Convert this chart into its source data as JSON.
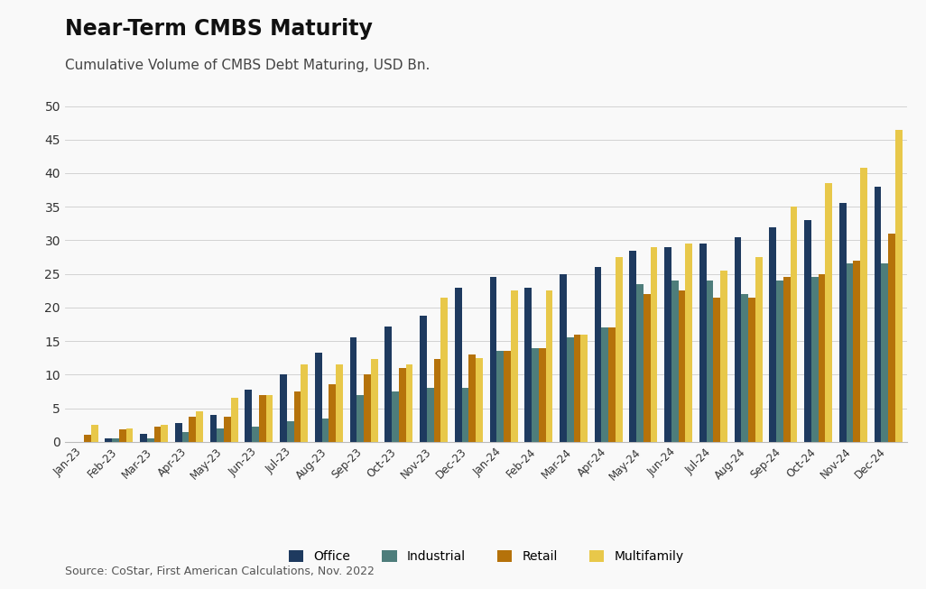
{
  "title": "Near-Term CMBS Maturity",
  "subtitle": "Cumulative Volume of CMBS Debt Maturing, USD Bn.",
  "source": "Source: CoStar, First American Calculations, Nov. 2022",
  "categories": [
    "Jan-23",
    "Feb-23",
    "Mar-23",
    "Apr-23",
    "May-23",
    "Jun-23",
    "Jul-23",
    "Aug-23",
    "Sep-23",
    "Oct-23",
    "Nov-23",
    "Dec-23",
    "Jan-24",
    "Feb-24",
    "Mar-24",
    "Apr-24",
    "May-24",
    "Jun-24",
    "Jul-24",
    "Aug-24",
    "Sep-24",
    "Oct-24",
    "Nov-24",
    "Dec-24"
  ],
  "office": [
    0.0,
    0.5,
    1.2,
    2.8,
    4.0,
    7.8,
    10.0,
    13.2,
    15.5,
    17.2,
    18.8,
    23.0,
    24.5,
    23.0,
    25.0,
    26.0,
    28.5,
    29.0,
    29.5,
    30.5,
    32.0,
    33.0,
    35.5,
    38.0
  ],
  "industrial": [
    0.0,
    0.5,
    0.5,
    1.5,
    2.0,
    2.3,
    3.0,
    3.5,
    7.0,
    7.5,
    8.0,
    8.0,
    13.5,
    14.0,
    15.5,
    17.0,
    23.5,
    24.0,
    24.0,
    22.0,
    24.0,
    24.5,
    26.5,
    26.5
  ],
  "retail": [
    1.0,
    1.8,
    2.2,
    3.7,
    3.7,
    7.0,
    7.5,
    8.5,
    10.0,
    11.0,
    12.3,
    13.0,
    13.5,
    14.0,
    16.0,
    17.0,
    22.0,
    22.5,
    21.5,
    21.5,
    24.5,
    25.0,
    27.0,
    31.0
  ],
  "multifamily": [
    2.5,
    2.0,
    2.5,
    4.5,
    6.5,
    7.0,
    11.5,
    11.5,
    12.3,
    11.5,
    21.5,
    12.5,
    22.5,
    22.5,
    16.0,
    27.5,
    29.0,
    29.5,
    25.5,
    27.5,
    35.0,
    38.5,
    40.8,
    46.5
  ],
  "office_color": "#1e3a5f",
  "industrial_color": "#4e7d7b",
  "retail_color": "#b5720a",
  "multifamily_color": "#e8c84a",
  "background_color": "#f9f9f9",
  "ylim": [
    0,
    50
  ],
  "yticks": [
    0,
    5,
    10,
    15,
    20,
    25,
    30,
    35,
    40,
    45,
    50
  ],
  "grid_color": "#cccccc",
  "title_fontsize": 17,
  "subtitle_fontsize": 11,
  "source_fontsize": 9,
  "bar_width": 0.2
}
